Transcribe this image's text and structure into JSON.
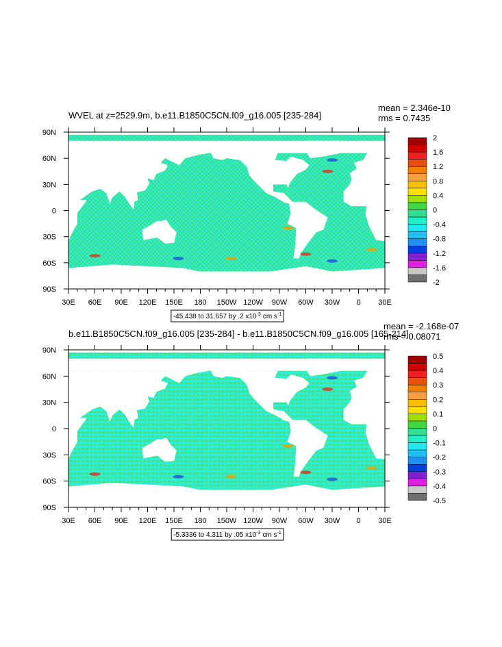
{
  "panels": [
    {
      "title": "WVEL at z=2529.9m, b.e11.B1850C5CN.f09_g16.005 [235-284]",
      "stats": [
        "mean = 2.346e-10",
        "rms = 0.7435"
      ],
      "lat_labels": [
        "90N",
        "60N",
        "30N",
        "0",
        "30S",
        "60S",
        "90S"
      ],
      "lon_labels": [
        "30E",
        "60E",
        "90E",
        "120E",
        "150E",
        "180",
        "150W",
        "120W",
        "90W",
        "60W",
        "30W",
        "0",
        "30E"
      ],
      "colorbar_labels": [
        2,
        1.6,
        1.2,
        0.8,
        0.4,
        0,
        -0.4,
        -0.8,
        -1.2,
        -1.6,
        -2
      ],
      "info": {
        "text": "-45.438 to 31.657 by .2 x10",
        "exp": "-3",
        "unit": "cm s",
        "unit_exp": "-1"
      }
    },
    {
      "title": "b.e11.B1850C5CN.f09_g16.005 [235-284] - b.e11.B1850C5CN.f09_g16.005 [165-214]",
      "stats": [
        "mean = -2.168e-07",
        "rms = 0.08071"
      ],
      "lat_labels": [
        "90N",
        "60N",
        "30N",
        "0",
        "30S",
        "60S",
        "90S"
      ],
      "lon_labels": [
        "30E",
        "60E",
        "90E",
        "120E",
        "150E",
        "180",
        "150W",
        "120W",
        "90W",
        "60W",
        "30W",
        "0",
        "30E"
      ],
      "colorbar_labels": [
        0.5,
        0.4,
        0.3,
        0.2,
        0.1,
        0,
        -0.1,
        -0.2,
        -0.3,
        -0.4,
        -0.5
      ],
      "info": {
        "text": "-5.3336 to 4.311 by .05 x10",
        "exp": "-3",
        "unit": "cm s",
        "unit_exp": "-1"
      }
    }
  ],
  "colorbar_colors": [
    "#a00000",
    "#d00000",
    "#f02020",
    "#e85010",
    "#f08000",
    "#f8a040",
    "#f8c000",
    "#f8e000",
    "#a0e000",
    "#40d840",
    "#30e090",
    "#20f0c8",
    "#20e8f0",
    "#20c0f0",
    "#2090f0",
    "#0040e0",
    "#8020d0",
    "#e020e0",
    "#c8c8c8",
    "#707070"
  ]
}
